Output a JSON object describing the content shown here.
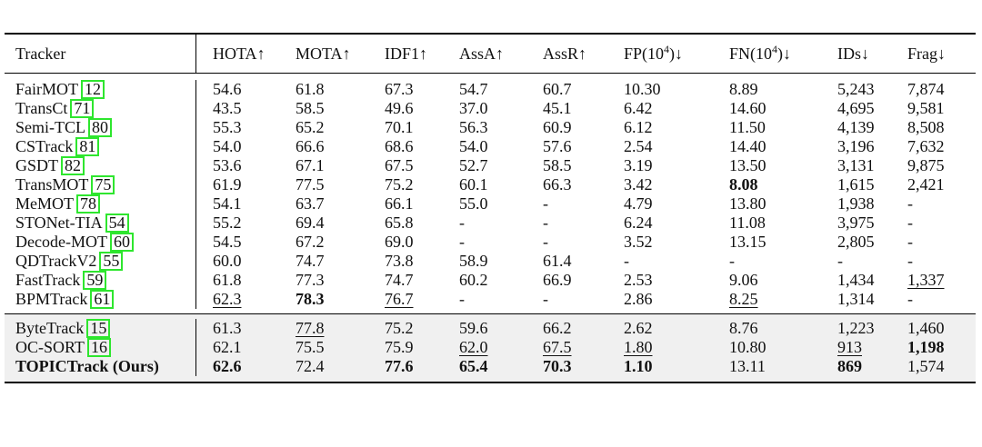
{
  "headers": [
    {
      "label": "Tracker",
      "arrow": ""
    },
    {
      "label": "HOTA",
      "arrow": "↑"
    },
    {
      "label": "MOTA",
      "arrow": "↑"
    },
    {
      "label": "IDF1",
      "arrow": "↑"
    },
    {
      "label": "AssA",
      "arrow": "↑"
    },
    {
      "label": "AssR",
      "arrow": "↑"
    },
    {
      "label": "FP(10",
      "sup": "4",
      "close": ")",
      "arrow": "↓"
    },
    {
      "label": "FN(10",
      "sup": "4",
      "close": ")",
      "arrow": "↓"
    },
    {
      "label": "IDs",
      "arrow": "↓"
    },
    {
      "label": "Frag",
      "arrow": "↓"
    }
  ],
  "highlight_color": "#2ee62e",
  "sections": [
    {
      "rows": [
        {
          "name": "FairMOT",
          "cite": "12",
          "values": [
            "54.6",
            "61.8",
            "67.3",
            "54.7",
            "60.7",
            "10.30",
            "8.89",
            "5,243",
            "7,874"
          ],
          "bold": [],
          "underline": []
        },
        {
          "name": "TransCt",
          "cite": "71",
          "values": [
            "43.5",
            "58.5",
            "49.6",
            "37.0",
            "45.1",
            "6.42",
            "14.60",
            "4,695",
            "9,581"
          ],
          "bold": [],
          "underline": []
        },
        {
          "name": "Semi-TCL",
          "cite": "80",
          "values": [
            "55.3",
            "65.2",
            "70.1",
            "56.3",
            "60.9",
            "6.12",
            "11.50",
            "4,139",
            "8,508"
          ],
          "bold": [],
          "underline": []
        },
        {
          "name": "CSTrack",
          "cite": "81",
          "values": [
            "54.0",
            "66.6",
            "68.6",
            "54.0",
            "57.6",
            "2.54",
            "14.40",
            "3,196",
            "7,632"
          ],
          "bold": [],
          "underline": []
        },
        {
          "name": "GSDT",
          "cite": "82",
          "values": [
            "53.6",
            "67.1",
            "67.5",
            "52.7",
            "58.5",
            "3.19",
            "13.50",
            "3,131",
            "9,875"
          ],
          "bold": [],
          "underline": []
        },
        {
          "name": "TransMOT",
          "cite": "75",
          "values": [
            "61.9",
            "77.5",
            "75.2",
            "60.1",
            "66.3",
            "3.42",
            "8.08",
            "1,615",
            "2,421"
          ],
          "bold": [
            6
          ],
          "underline": []
        },
        {
          "name": "MeMOT",
          "cite": "78",
          "values": [
            "54.1",
            "63.7",
            "66.1",
            "55.0",
            "-",
            "4.79",
            "13.80",
            "1,938",
            "-"
          ],
          "bold": [],
          "underline": []
        },
        {
          "name": "STONet-TIA",
          "cite": "54",
          "values": [
            "55.2",
            "69.4",
            "65.8",
            "-",
            "-",
            "6.24",
            "11.08",
            "3,975",
            "-"
          ],
          "bold": [],
          "underline": []
        },
        {
          "name": "Decode-MOT",
          "cite": "60",
          "values": [
            "54.5",
            "67.2",
            "69.0",
            "-",
            "-",
            "3.52",
            "13.15",
            "2,805",
            "-"
          ],
          "bold": [],
          "underline": []
        },
        {
          "name": "QDTrackV2",
          "cite": "55",
          "values": [
            "60.0",
            "74.7",
            "73.8",
            "58.9",
            "61.4",
            "-",
            "-",
            "-",
            "-"
          ],
          "bold": [],
          "underline": []
        },
        {
          "name": "FastTrack",
          "cite": "59",
          "values": [
            "61.8",
            "77.3",
            "74.7",
            "60.2",
            "66.9",
            "2.53",
            "9.06",
            "1,434",
            "1,337"
          ],
          "bold": [],
          "underline": [
            8
          ]
        },
        {
          "name": "BPMTrack",
          "cite": "61",
          "values": [
            "62.3",
            "78.3",
            "76.7",
            "-",
            "-",
            "2.86",
            "8.25",
            "1,314",
            "-"
          ],
          "bold": [
            1
          ],
          "underline": [
            0,
            2,
            6
          ]
        }
      ]
    },
    {
      "rows": [
        {
          "name": "ByteTrack",
          "cite": "15",
          "values": [
            "61.3",
            "77.8",
            "75.2",
            "59.6",
            "66.2",
            "2.62",
            "8.76",
            "1,223",
            "1,460"
          ],
          "bold": [],
          "underline": [
            1
          ]
        },
        {
          "name": "OC-SORT",
          "cite": "16",
          "values": [
            "62.1",
            "75.5",
            "75.9",
            "62.0",
            "67.5",
            "1.80",
            "10.80",
            "913",
            "1,198"
          ],
          "bold": [
            8
          ],
          "underline": [
            3,
            4,
            5,
            7
          ]
        },
        {
          "name": "TOPICTrack (Ours)",
          "cite": "",
          "name_bold": true,
          "values": [
            "62.6",
            "72.4",
            "77.6",
            "65.4",
            "70.3",
            "1.10",
            "13.11",
            "869",
            "1,574"
          ],
          "bold": [
            0,
            2,
            3,
            4,
            5,
            7
          ],
          "underline": []
        }
      ]
    }
  ]
}
